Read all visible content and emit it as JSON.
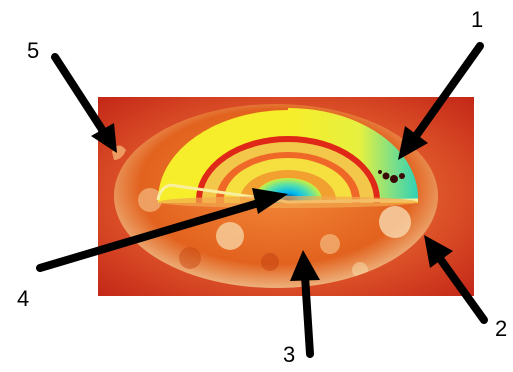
{
  "diagram": {
    "labels": [
      {
        "id": "1",
        "text": "1"
      },
      {
        "id": "2",
        "text": "2"
      },
      {
        "id": "3",
        "text": "3"
      },
      {
        "id": "4",
        "text": "4"
      },
      {
        "id": "5",
        "text": "5"
      }
    ],
    "colors": {
      "background": "#d4421a",
      "photosphere": "#e8641e",
      "radiative_zone": "#f2e82c",
      "convective_zone": "#3dd6a8",
      "core": "#00c8ff",
      "red_band": "#e02818",
      "arrow": "#000000"
    }
  }
}
